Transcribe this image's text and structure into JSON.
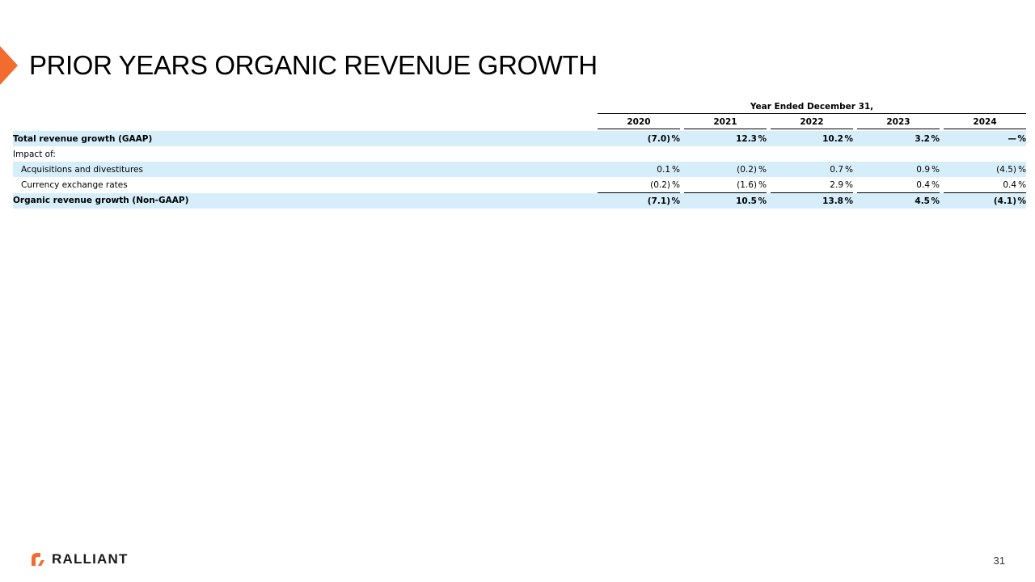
{
  "title": "PRIOR YEARS ORGANIC REVENUE GROWTH",
  "table": {
    "period_header": "Year Ended December 31,",
    "years": [
      "2020",
      "2021",
      "2022",
      "2023",
      "2024"
    ],
    "rows": [
      {
        "label": "Total revenue growth (GAAP)",
        "values": [
          "(7.0)",
          "12.3",
          "10.2",
          "3.2",
          "—"
        ],
        "suffix": [
          "%",
          "%",
          "%",
          "%",
          "%"
        ]
      },
      {
        "label": "Impact of:",
        "values": [
          "",
          "",
          "",
          "",
          ""
        ],
        "suffix": [
          "",
          "",
          "",
          "",
          ""
        ]
      },
      {
        "label": "Acquisitions and divestitures",
        "values": [
          "0.1",
          "(0.2)",
          "0.7",
          "0.9",
          "(4.5)"
        ],
        "suffix": [
          "%",
          "%",
          "%",
          "%",
          "%"
        ]
      },
      {
        "label": "Currency exchange rates",
        "values": [
          "(0.2)",
          "(1.6)",
          "2.9",
          "0.4",
          "0.4"
        ],
        "suffix": [
          "%",
          "%",
          "%",
          "%",
          "%"
        ]
      },
      {
        "label": "Organic revenue growth (Non-GAAP)",
        "values": [
          "(7.1)",
          "10.5",
          "13.8",
          "4.5",
          "(4.1)"
        ],
        "suffix": [
          "%",
          "%",
          "%",
          "%",
          "%"
        ]
      }
    ]
  },
  "footer": {
    "brand": "RALLIANT",
    "page_number": "31"
  },
  "colors": {
    "accent": "#f26b2f",
    "row_shade": "#d6eefa"
  }
}
